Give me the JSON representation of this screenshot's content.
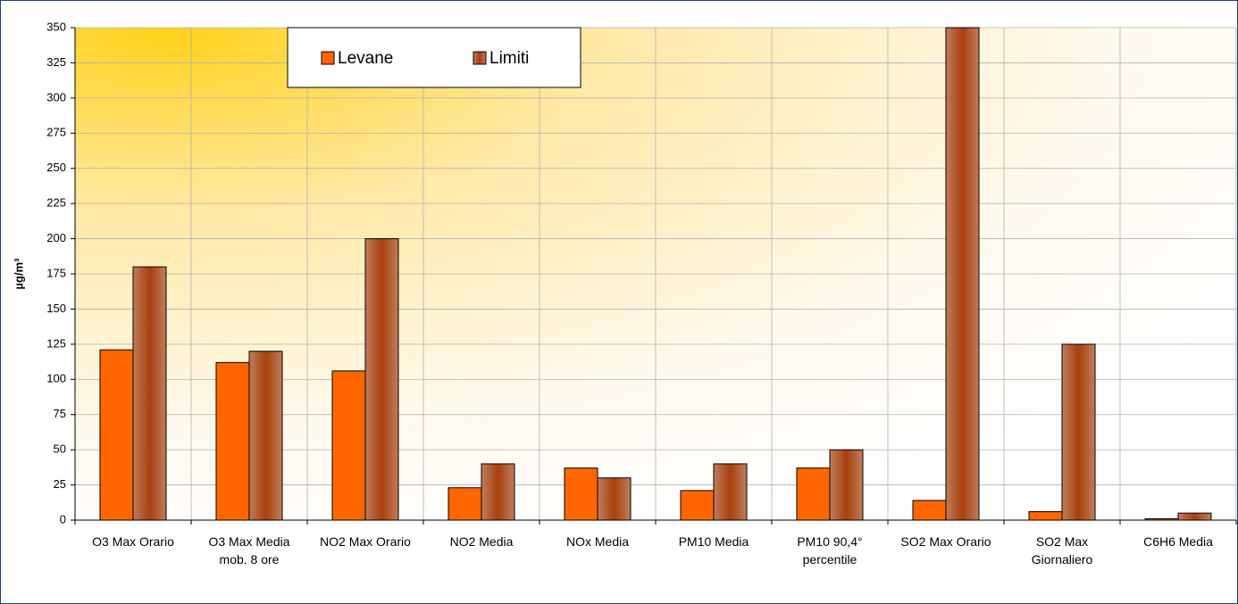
{
  "chart_data": {
    "type": "bar",
    "y_label": "µg/m³",
    "categories": [
      "O3  Max Orario",
      "O3 Max Media mob. 8 ore",
      "NO2  Max Orario",
      "NO2  Media",
      "NOx Media",
      "PM10 Media",
      "PM10 90,4° percentile",
      "SO2  Max Orario",
      "SO2  Max Giornaliero",
      "C6H6 Media"
    ],
    "series": [
      {
        "name": "Levane",
        "color": "#ff6600",
        "values": [
          121,
          112,
          106,
          23,
          37,
          21,
          37,
          14,
          6,
          1
        ]
      },
      {
        "name": "Limiti",
        "color": "#b5643a",
        "values": [
          180,
          120,
          200,
          40,
          30,
          40,
          50,
          350,
          125,
          5
        ]
      }
    ],
    "ylim": [
      0,
      350
    ],
    "yticks": [
      0,
      25,
      50,
      75,
      100,
      125,
      150,
      175,
      200,
      225,
      250,
      275,
      300,
      325,
      350
    ],
    "grid": true
  }
}
